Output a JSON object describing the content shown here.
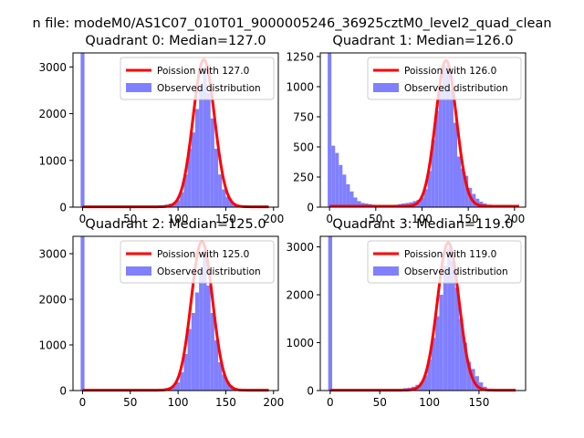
{
  "figure": {
    "suptitle": "n file: modeM0/AS1C07_010T01_9000005246_36925cztM0_level2_quad_clean"
  },
  "colors": {
    "bar": "#8080ff",
    "line": "#ff0000",
    "axis": "#000000"
  },
  "chart_data": [
    {
      "type": "bar",
      "title": "Quadrant 0: Median=127.0",
      "xlim": [
        -10,
        205
      ],
      "ylim": [
        0,
        3300
      ],
      "xticks": [
        0,
        50,
        100,
        150,
        200
      ],
      "yticks": [
        0,
        1000,
        2000,
        3000
      ],
      "bin_width": 4,
      "bins": [
        [
          -2,
          3300
        ],
        [
          2,
          2
        ],
        [
          6,
          2
        ],
        [
          10,
          2
        ],
        [
          14,
          2
        ],
        [
          18,
          2
        ],
        [
          22,
          2
        ],
        [
          26,
          2
        ],
        [
          30,
          2
        ],
        [
          34,
          2
        ],
        [
          38,
          2
        ],
        [
          42,
          2
        ],
        [
          46,
          2
        ],
        [
          50,
          2
        ],
        [
          54,
          3
        ],
        [
          58,
          4
        ],
        [
          62,
          6
        ],
        [
          66,
          8
        ],
        [
          70,
          12
        ],
        [
          74,
          18
        ],
        [
          78,
          28
        ],
        [
          82,
          40
        ],
        [
          86,
          55
        ],
        [
          90,
          75
        ],
        [
          94,
          100
        ],
        [
          98,
          150
        ],
        [
          102,
          320
        ],
        [
          106,
          700
        ],
        [
          110,
          1250
        ],
        [
          114,
          1600
        ],
        [
          118,
          2100
        ],
        [
          122,
          2600
        ],
        [
          126,
          3000
        ],
        [
          130,
          2450
        ],
        [
          134,
          1900
        ],
        [
          138,
          1250
        ],
        [
          142,
          700
        ],
        [
          146,
          380
        ],
        [
          150,
          220
        ],
        [
          154,
          120
        ],
        [
          158,
          60
        ],
        [
          162,
          30
        ],
        [
          166,
          15
        ],
        [
          170,
          8
        ],
        [
          174,
          4
        ],
        [
          178,
          2
        ],
        [
          182,
          1
        ],
        [
          186,
          1
        ],
        [
          190,
          1
        ],
        [
          194,
          1
        ]
      ],
      "poisson": {
        "label": "Poission with 127.0",
        "lambda": 127.0,
        "peak": 3150,
        "x_range": [
          0,
          195
        ]
      },
      "legend": [
        "Poission with 127.0",
        "Observed distribution"
      ],
      "legend_position": "upper right"
    },
    {
      "type": "bar",
      "title": "Quadrant 1: Median=126.0",
      "xlim": [
        -10,
        212
      ],
      "ylim": [
        0,
        1280
      ],
      "xticks": [
        0,
        50,
        100,
        150,
        200
      ],
      "yticks": [
        0,
        250,
        500,
        750,
        1000,
        1250
      ],
      "bin_width": 4,
      "bins": [
        [
          -2,
          1280
        ],
        [
          2,
          510
        ],
        [
          6,
          450
        ],
        [
          10,
          350
        ],
        [
          14,
          270
        ],
        [
          18,
          190
        ],
        [
          22,
          130
        ],
        [
          26,
          80
        ],
        [
          30,
          50
        ],
        [
          34,
          35
        ],
        [
          38,
          30
        ],
        [
          42,
          25
        ],
        [
          46,
          20
        ],
        [
          50,
          15
        ],
        [
          54,
          12
        ],
        [
          58,
          10
        ],
        [
          62,
          12
        ],
        [
          66,
          15
        ],
        [
          70,
          20
        ],
        [
          74,
          25
        ],
        [
          78,
          30
        ],
        [
          82,
          35
        ],
        [
          86,
          40
        ],
        [
          90,
          50
        ],
        [
          94,
          60
        ],
        [
          98,
          80
        ],
        [
          102,
          150
        ],
        [
          106,
          300
        ],
        [
          110,
          560
        ],
        [
          114,
          800
        ],
        [
          118,
          1000
        ],
        [
          122,
          1170
        ],
        [
          126,
          1180
        ],
        [
          130,
          980
        ],
        [
          134,
          700
        ],
        [
          138,
          420
        ],
        [
          142,
          320
        ],
        [
          146,
          260
        ],
        [
          150,
          160
        ],
        [
          154,
          110
        ],
        [
          158,
          70
        ],
        [
          162,
          45
        ],
        [
          166,
          30
        ],
        [
          170,
          20
        ],
        [
          174,
          12
        ],
        [
          178,
          8
        ],
        [
          182,
          5
        ],
        [
          186,
          3
        ],
        [
          190,
          2
        ],
        [
          194,
          2
        ],
        [
          198,
          1
        ],
        [
          202,
          1
        ]
      ],
      "poisson": {
        "label": "Poission with 126.0",
        "lambda": 126.0,
        "peak": 1210,
        "x_range": [
          0,
          205
        ]
      },
      "legend": [
        "Poission with 126.0",
        "Observed distribution"
      ],
      "legend_position": "upper right"
    },
    {
      "type": "bar",
      "title": "Quadrant 2: Median=125.0",
      "xlim": [
        -10,
        205
      ],
      "ylim": [
        0,
        3380
      ],
      "xticks": [
        0,
        50,
        100,
        150,
        200
      ],
      "yticks": [
        0,
        1000,
        2000,
        3000
      ],
      "bin_width": 4,
      "bins": [
        [
          -2,
          3380
        ],
        [
          2,
          2
        ],
        [
          6,
          2
        ],
        [
          10,
          2
        ],
        [
          14,
          2
        ],
        [
          18,
          2
        ],
        [
          22,
          2
        ],
        [
          26,
          2
        ],
        [
          30,
          2
        ],
        [
          34,
          2
        ],
        [
          38,
          2
        ],
        [
          42,
          2
        ],
        [
          46,
          2
        ],
        [
          50,
          2
        ],
        [
          54,
          2
        ],
        [
          58,
          3
        ],
        [
          62,
          4
        ],
        [
          66,
          6
        ],
        [
          70,
          10
        ],
        [
          74,
          16
        ],
        [
          78,
          25
        ],
        [
          82,
          40
        ],
        [
          86,
          55
        ],
        [
          90,
          75
        ],
        [
          94,
          110
        ],
        [
          98,
          180
        ],
        [
          102,
          400
        ],
        [
          106,
          800
        ],
        [
          110,
          1350
        ],
        [
          114,
          1700
        ],
        [
          118,
          2150
        ],
        [
          122,
          2650
        ],
        [
          126,
          3080
        ],
        [
          130,
          2300
        ],
        [
          134,
          1700
        ],
        [
          138,
          1100
        ],
        [
          142,
          620
        ],
        [
          146,
          350
        ],
        [
          150,
          200
        ],
        [
          154,
          110
        ],
        [
          158,
          55
        ],
        [
          162,
          28
        ],
        [
          166,
          14
        ],
        [
          170,
          7
        ],
        [
          174,
          3
        ],
        [
          178,
          2
        ],
        [
          182,
          1
        ],
        [
          186,
          1
        ],
        [
          190,
          1
        ]
      ],
      "poisson": {
        "label": "Poission with 125.0",
        "lambda": 125.0,
        "peak": 3260,
        "x_range": [
          0,
          195
        ]
      },
      "legend": [
        "Poission with 125.0",
        "Observed distribution"
      ],
      "legend_position": "upper right"
    },
    {
      "type": "bar",
      "title": "Quadrant 3: Median=119.0",
      "xlim": [
        -10,
        197
      ],
      "ylim": [
        0,
        3220
      ],
      "xticks": [
        0,
        50,
        100,
        150
      ],
      "yticks": [
        0,
        1000,
        2000,
        3000
      ],
      "bin_width": 4,
      "bins": [
        [
          -2,
          3220
        ],
        [
          2,
          2
        ],
        [
          6,
          2
        ],
        [
          10,
          2
        ],
        [
          14,
          2
        ],
        [
          18,
          2
        ],
        [
          22,
          2
        ],
        [
          26,
          2
        ],
        [
          30,
          2
        ],
        [
          34,
          2
        ],
        [
          38,
          2
        ],
        [
          42,
          2
        ],
        [
          46,
          2
        ],
        [
          50,
          3
        ],
        [
          54,
          5
        ],
        [
          58,
          8
        ],
        [
          62,
          15
        ],
        [
          66,
          25
        ],
        [
          70,
          35
        ],
        [
          74,
          50
        ],
        [
          78,
          60
        ],
        [
          82,
          80
        ],
        [
          86,
          120
        ],
        [
          90,
          170
        ],
        [
          94,
          320
        ],
        [
          98,
          650
        ],
        [
          102,
          1100
        ],
        [
          106,
          1550
        ],
        [
          110,
          2000
        ],
        [
          114,
          2600
        ],
        [
          118,
          2980
        ],
        [
          122,
          2700
        ],
        [
          126,
          2150
        ],
        [
          130,
          1500
        ],
        [
          134,
          1000
        ],
        [
          138,
          600
        ],
        [
          142,
          450
        ],
        [
          146,
          300
        ],
        [
          150,
          170
        ],
        [
          154,
          80
        ],
        [
          158,
          40
        ],
        [
          162,
          20
        ],
        [
          166,
          10
        ],
        [
          170,
          5
        ],
        [
          174,
          3
        ],
        [
          178,
          2
        ],
        [
          182,
          1
        ]
      ],
      "poisson": {
        "label": "Poission with 119.0",
        "lambda": 119.0,
        "peak": 3080,
        "x_range": [
          0,
          187
        ]
      },
      "legend": [
        "Poission with 119.0",
        "Observed distribution"
      ],
      "legend_position": "upper right"
    }
  ]
}
